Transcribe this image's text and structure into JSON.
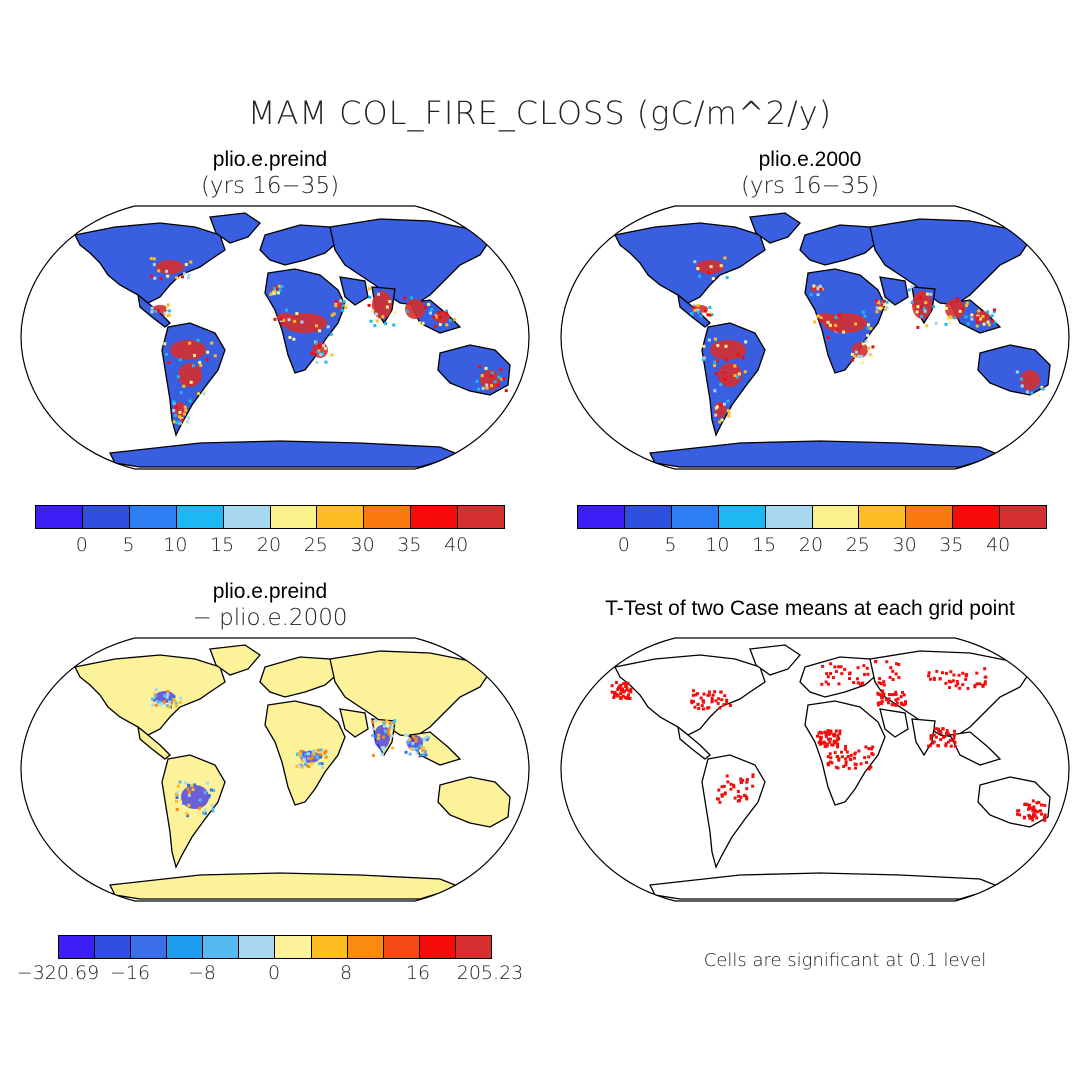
{
  "figure": {
    "title": "MAM COL_FIRE_CLOSS (gC/m^2/y)"
  },
  "panels": [
    {
      "title": "plio.e.preind",
      "subtitle": "(yrs 16−35)",
      "land_color": "#3a5ee0",
      "hotspot_color": "#d62f2f",
      "colorbar": {
        "colors": [
          "#3b1ff5",
          "#2f4fe0",
          "#2c7ef2",
          "#1bb8f2",
          "#a8d8f0",
          "#fbf28c",
          "#fcbc22",
          "#fb7a10",
          "#f60a0a",
          "#d4302f"
        ],
        "labels": [
          "0",
          "5",
          "10",
          "15",
          "20",
          "25",
          "30",
          "35",
          "40"
        ]
      }
    },
    {
      "title": "plio.e.2000",
      "subtitle": "(yrs 16−35)",
      "land_color": "#3a5ee0",
      "hotspot_color": "#d62f2f",
      "colorbar": {
        "colors": [
          "#3b1ff5",
          "#2f4fe0",
          "#2c7ef2",
          "#1bb8f2",
          "#a8d8f0",
          "#fbf28c",
          "#fcbc22",
          "#fb7a10",
          "#f60a0a",
          "#d4302f"
        ],
        "labels": [
          "0",
          "5",
          "10",
          "15",
          "20",
          "25",
          "30",
          "35",
          "40"
        ]
      }
    },
    {
      "title": "plio.e.preind",
      "subtitle": "− plio.e.2000",
      "land_color": "#fbf29a",
      "hotspot_color": "#3b2fe8",
      "colorbar": {
        "colors": [
          "#3b1ff5",
          "#2f4fe0",
          "#3a6ee8",
          "#1f9ef0",
          "#56baf0",
          "#a8d8f0",
          "#fbf29a",
          "#fcbc22",
          "#fb8a10",
          "#f54a14",
          "#f60a0a",
          "#d4302f"
        ],
        "labels": [
          "−320.69",
          "−16",
          "−8",
          "0",
          "8",
          "16",
          "205.23"
        ]
      }
    },
    {
      "title": "T-Test of two Case means at each grid point",
      "land_color": "#ffffff",
      "hotspot_color": "#f40d0d",
      "note": "Cells are significant at 0.1 level"
    }
  ]
}
